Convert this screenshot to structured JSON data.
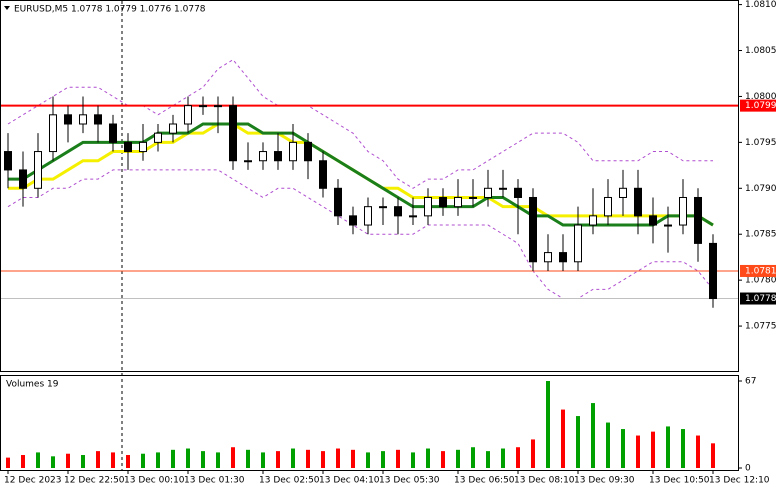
{
  "chart_data": {
    "type": "candlestick",
    "title": "EURUSD,M5 1.0778 1.0779 1.0776 1.0778",
    "categories": [
      "12 Dec 2023",
      null,
      null,
      null,
      "12 Dec 22:50",
      null,
      null,
      null,
      "13 Dec 00:10",
      null,
      null,
      null,
      "13 Dec 01:30",
      null,
      null,
      null,
      null,
      "13 Dec 02:50",
      null,
      null,
      null,
      "13 Dec 04:10",
      null,
      null,
      null,
      "13 Dec 05:30",
      null,
      null,
      null,
      null,
      "13 Dec 06:50",
      null,
      null,
      null,
      "13 Dec 08:10",
      null,
      null,
      null,
      "13 Dec 09:30",
      null,
      null,
      null,
      null,
      "13 Dec 10:50",
      null,
      null,
      null,
      "13 Dec 12:10"
    ],
    "open": [
      1.0794,
      1.0792,
      1.079,
      1.0794,
      1.0798,
      1.0797,
      1.0798,
      1.0797,
      1.0795,
      1.0794,
      1.0795,
      1.0796,
      1.0797,
      1.0799,
      1.0799,
      1.0799,
      1.0793,
      1.0793,
      1.0794,
      1.0793,
      1.0795,
      1.0793,
      1.079,
      1.0787,
      1.0786,
      1.0788,
      1.0788,
      1.0787,
      1.0787,
      1.0789,
      1.0788,
      1.0789,
      1.0789,
      1.079,
      1.079,
      1.0789,
      1.0782,
      1.0783,
      1.0782,
      1.0786,
      1.0787,
      1.0789,
      1.079,
      1.0787,
      1.0786,
      1.0786,
      1.0789,
      1.0784
    ],
    "high": [
      1.0796,
      1.0794,
      1.0796,
      1.08,
      1.0799,
      1.08,
      1.0799,
      1.0798,
      1.0796,
      1.0797,
      1.0797,
      1.0798,
      1.08,
      1.08,
      1.08,
      1.08,
      1.0795,
      1.0795,
      1.0796,
      1.0797,
      1.0796,
      1.0794,
      1.0791,
      1.0788,
      1.0789,
      1.0789,
      1.0789,
      1.0789,
      1.079,
      1.079,
      1.0791,
      1.0791,
      1.0792,
      1.0792,
      1.0791,
      1.079,
      1.0785,
      1.0785,
      1.0788,
      1.079,
      1.0791,
      1.0792,
      1.0792,
      1.0789,
      1.0788,
      1.0791,
      1.079,
      1.0785
    ],
    "low": [
      1.079,
      1.0788,
      1.0789,
      1.0793,
      1.0795,
      1.0796,
      1.0795,
      1.0794,
      1.0792,
      1.0793,
      1.0794,
      1.0795,
      1.0796,
      1.0798,
      1.0796,
      1.0792,
      1.0792,
      1.0792,
      1.0792,
      1.0792,
      1.0791,
      1.0789,
      1.0786,
      1.0785,
      1.0785,
      1.0786,
      1.0785,
      1.0786,
      1.0786,
      1.0787,
      1.0787,
      1.0788,
      1.0788,
      1.0789,
      1.0785,
      1.0781,
      1.0781,
      1.0781,
      1.0781,
      1.0785,
      1.0786,
      1.0787,
      1.0785,
      1.0784,
      1.0783,
      1.0785,
      1.0782,
      1.0777
    ],
    "close": [
      1.0792,
      1.079,
      1.0794,
      1.0798,
      1.0797,
      1.0798,
      1.0797,
      1.0795,
      1.0794,
      1.0795,
      1.0796,
      1.0797,
      1.0799,
      1.0799,
      1.0799,
      1.0793,
      1.0793,
      1.0794,
      1.0793,
      1.0795,
      1.0793,
      1.079,
      1.0787,
      1.0786,
      1.0788,
      1.0788,
      1.0787,
      1.0787,
      1.0789,
      1.0788,
      1.0789,
      1.0789,
      1.079,
      1.079,
      1.0789,
      1.0782,
      1.0783,
      1.0782,
      1.0786,
      1.0787,
      1.0789,
      1.079,
      1.0787,
      1.0786,
      1.0786,
      1.0789,
      1.0784,
      1.0778
    ],
    "lines": [
      {
        "color": "#b04fd0",
        "dashed": true,
        "values": [
          1.0797,
          1.0798,
          1.0799,
          1.08,
          1.0801,
          1.0801,
          1.0801,
          1.08,
          1.0799,
          1.0799,
          1.0798,
          1.0799,
          1.08,
          1.0801,
          1.0803,
          1.0804,
          1.0802,
          1.08,
          1.0799,
          1.0799,
          1.0799,
          1.0798,
          1.0797,
          1.0796,
          1.0794,
          1.0793,
          1.0791,
          1.079,
          1.0791,
          1.0791,
          1.0792,
          1.0792,
          1.0793,
          1.0794,
          1.0795,
          1.0796,
          1.0796,
          1.0796,
          1.0795,
          1.0793,
          1.0793,
          1.0793,
          1.0793,
          1.0794,
          1.0794,
          1.0793,
          1.0793,
          1.0793
        ]
      },
      {
        "color": "#b04fd0",
        "dashed": true,
        "values": [
          1.0788,
          1.0789,
          1.0789,
          1.079,
          1.079,
          1.0791,
          1.0791,
          1.0792,
          1.0792,
          1.0792,
          1.0792,
          1.0792,
          1.0792,
          1.0792,
          1.0792,
          1.0791,
          1.079,
          1.0789,
          1.079,
          1.079,
          1.0789,
          1.0788,
          1.0787,
          1.0786,
          1.0785,
          1.0785,
          1.0785,
          1.0785,
          1.0786,
          1.0786,
          1.0786,
          1.0786,
          1.0786,
          1.0785,
          1.0784,
          1.0781,
          1.0779,
          1.0778,
          1.0778,
          1.0779,
          1.0779,
          1.078,
          1.0781,
          1.0782,
          1.0782,
          1.0782,
          1.0781,
          1.0779
        ]
      },
      {
        "color": "#f5f000",
        "dashed": false,
        "values": [
          1.079,
          1.079,
          1.0791,
          1.0791,
          1.0792,
          1.0793,
          1.0793,
          1.0794,
          1.0794,
          1.0794,
          1.0795,
          1.0795,
          1.0796,
          1.0796,
          1.0797,
          1.0797,
          1.0796,
          1.0796,
          1.0796,
          1.0795,
          1.0795,
          1.0794,
          1.0793,
          1.0792,
          1.0791,
          1.079,
          1.079,
          1.0789,
          1.0789,
          1.0789,
          1.0789,
          1.0789,
          1.0789,
          1.0788,
          1.0788,
          1.0788,
          1.0787,
          1.0787,
          1.0787,
          1.0787,
          1.0787,
          1.0787,
          1.0787,
          1.0787,
          1.0787,
          1.0787,
          1.0787,
          1.0786
        ]
      },
      {
        "color": "#1a7f1a",
        "dashed": false,
        "values": [
          1.0791,
          1.0791,
          1.0792,
          1.0793,
          1.0794,
          1.0795,
          1.0795,
          1.0795,
          1.0795,
          1.0795,
          1.0796,
          1.0796,
          1.0796,
          1.0797,
          1.0797,
          1.0797,
          1.0797,
          1.0796,
          1.0796,
          1.0796,
          1.0795,
          1.0794,
          1.0793,
          1.0792,
          1.0791,
          1.079,
          1.0789,
          1.0788,
          1.0788,
          1.0788,
          1.0788,
          1.0788,
          1.0789,
          1.0789,
          1.0788,
          1.0787,
          1.0787,
          1.0786,
          1.0786,
          1.0786,
          1.0786,
          1.0786,
          1.0786,
          1.0786,
          1.0787,
          1.0787,
          1.0787,
          1.0786
        ]
      }
    ],
    "levels": [
      {
        "value": 1.0799,
        "color": "#ff0000",
        "line_color": "#ff0000"
      },
      {
        "value": 1.0781,
        "color": "#ff4a1a",
        "line_color": "#ff4a1a"
      },
      {
        "value": 1.0778,
        "color": "#000000",
        "line_color": "#c0c0c0"
      }
    ],
    "ylim": [
      1.077,
      1.08105
    ],
    "yticks": [
      {
        "value": 1.081,
        "label": "1.0810"
      },
      1.0805,
      {
        "value": 1.08,
        "label": "1.0800"
      },
      1.0795,
      {
        "value": 1.079,
        "label": "1.0790"
      },
      1.0785,
      {
        "value": 1.078,
        "label": "1.0780"
      },
      1.0775
    ],
    "volume_title": "Volumes 19",
    "volumes": [
      8,
      10,
      12,
      9,
      11,
      10,
      13,
      12,
      10,
      11,
      12,
      14,
      15,
      13,
      12,
      16,
      14,
      12,
      13,
      15,
      14,
      13,
      15,
      14,
      12,
      13,
      14,
      12,
      15,
      13,
      14,
      16,
      13,
      15,
      16,
      22,
      67,
      45,
      40,
      50,
      35,
      30,
      25,
      28,
      32,
      30,
      25,
      19
    ],
    "volume_ylim": [
      0,
      67
    ],
    "volume_yticks": [
      0,
      67
    ],
    "up_color": "#00a000",
    "down_color": "#ff0000"
  }
}
